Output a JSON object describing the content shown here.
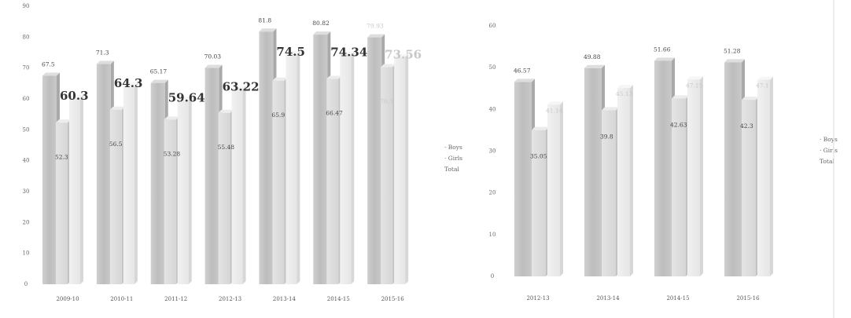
{
  "chart_data": [
    {
      "type": "bar",
      "title": "",
      "xlabel": "",
      "ylabel": "",
      "ylim": [
        0,
        90
      ],
      "yticks": [
        "0",
        "10",
        "20",
        "30",
        "40",
        "50",
        "60",
        "70",
        "80",
        "90"
      ],
      "categories": [
        "2009-10",
        "2010-11",
        "2011-12",
        "2012-13",
        "2013-14",
        "2014-15",
        "2015-16"
      ],
      "series": [
        {
          "name": "Boys",
          "values": [
            67.5,
            71.3,
            65.17,
            70.03,
            81.8,
            80.82,
            79.93
          ]
        },
        {
          "name": "Girls",
          "values": [
            52.3,
            56.5,
            53.28,
            55.48,
            65.9,
            66.47,
            70.3
          ]
        },
        {
          "name": "Total",
          "values": [
            60.3,
            64.3,
            59.64,
            63.22,
            74.5,
            74.34,
            73.56
          ]
        }
      ],
      "value_labels": {
        "Boys": [
          "67.5",
          "71.3",
          "65.17",
          "70.03",
          "81.8",
          "80.82",
          "79.93"
        ],
        "Girls": [
          "52.3",
          "56.5",
          "53.28",
          "55.48",
          "65.9",
          "66.47",
          "70.3"
        ],
        "Total": [
          "60.3",
          "64.3",
          "59.64",
          "63.22",
          "74.5",
          "74.34",
          "73.56"
        ]
      },
      "legend": "right",
      "grid": false
    },
    {
      "type": "bar",
      "title": "",
      "xlabel": "",
      "ylabel": "",
      "ylim": [
        0,
        60
      ],
      "yticks": [
        "0",
        "10",
        "20",
        "30",
        "40",
        "50",
        "60"
      ],
      "categories": [
        "2012-13",
        "2013-14",
        "2014-15",
        "2015-16"
      ],
      "series": [
        {
          "name": "Boys",
          "values": [
            46.57,
            49.88,
            51.66,
            51.28
          ]
        },
        {
          "name": "Girls",
          "values": [
            35.05,
            39.8,
            42.63,
            42.3
          ]
        },
        {
          "name": "Total",
          "values": [
            41.14,
            45.13,
            47.15,
            47.1
          ]
        }
      ],
      "value_labels": {
        "Boys": [
          "46.57",
          "49.88",
          "51.66",
          "51.28"
        ],
        "Girls": [
          "35.05",
          "39.8",
          "42.63",
          "42.3"
        ],
        "Total": [
          "41.14",
          "45.13",
          "47.15",
          "47.1"
        ]
      },
      "legend": "right",
      "grid": false
    }
  ]
}
